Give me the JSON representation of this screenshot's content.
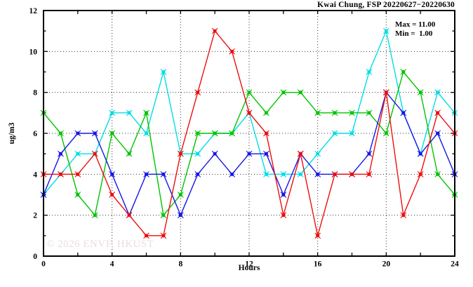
{
  "header": {
    "title": "Kwai Chung, FSP 20220627−20220630"
  },
  "annotations": {
    "max_label": "Max = 11.00",
    "min_label": "Min =  1.00"
  },
  "watermark": "© 2026 ENVF, HKUST",
  "axes": {
    "ylabel": "ug/m3",
    "xlabel": "Hours"
  },
  "chart_data": {
    "type": "line",
    "title": "Kwai Chung, FSP 20220627−20220630",
    "xlabel": "Hours",
    "ylabel": "ug/m3",
    "xlim": [
      0,
      24
    ],
    "ylim": [
      0,
      12
    ],
    "xticks_labeled": [
      0,
      4,
      8,
      12,
      16,
      20,
      24
    ],
    "xticks_minor_every": 2,
    "yticks_labeled": [
      0,
      2,
      4,
      6,
      8,
      10,
      12
    ],
    "yticks_minor_every": 1,
    "grid_x": [
      4,
      8,
      12,
      16,
      20
    ],
    "grid_y": [
      2,
      4,
      6,
      8,
      10
    ],
    "grid": true,
    "legend_position": "none",
    "annotations": [
      "Max = 11.00",
      "Min =  1.00"
    ],
    "x": [
      0,
      1,
      2,
      3,
      4,
      5,
      6,
      7,
      8,
      9,
      10,
      11,
      12,
      13,
      14,
      15,
      16,
      17,
      18,
      19,
      20,
      21,
      22,
      23,
      24
    ],
    "series": [
      {
        "name": "series-cyan",
        "color": "#00dde6",
        "values": [
          3,
          4,
          5,
          5,
          7,
          7,
          6,
          9,
          5,
          5,
          6,
          6,
          7,
          4,
          4,
          4,
          5,
          6,
          6,
          9,
          11,
          7,
          5,
          8,
          7
        ]
      },
      {
        "name": "series-green",
        "color": "#00c400",
        "values": [
          7,
          6,
          3,
          2,
          6,
          5,
          7,
          2,
          3,
          6,
          6,
          6,
          8,
          7,
          8,
          8,
          7,
          7,
          7,
          7,
          6,
          9,
          8,
          4,
          3
        ]
      },
      {
        "name": "series-blue",
        "color": "#1717e6",
        "values": [
          3,
          5,
          6,
          6,
          4,
          2,
          4,
          4,
          2,
          4,
          5,
          4,
          5,
          5,
          3,
          5,
          4,
          4,
          4,
          5,
          8,
          7,
          5,
          6,
          4
        ]
      },
      {
        "name": "series-red",
        "color": "#ee0e0e",
        "values": [
          4,
          4,
          4,
          5,
          3,
          2,
          1,
          1,
          5,
          8,
          11,
          10,
          7,
          6,
          2,
          5,
          1,
          4,
          4,
          4,
          8,
          2,
          4,
          7,
          6
        ]
      }
    ]
  },
  "plot_style": {
    "frame_color": "#000000",
    "grid_color": "#333333",
    "background": "#ffffff"
  }
}
